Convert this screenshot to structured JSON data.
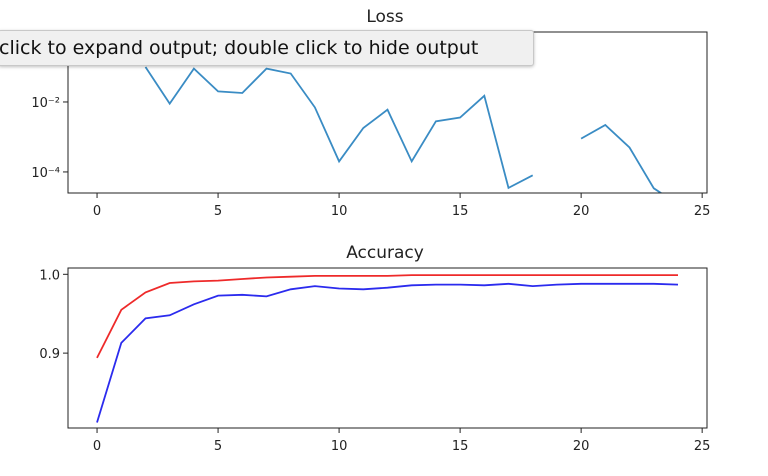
{
  "tooltip": {
    "text": "click to expand output; double click to hide output"
  },
  "chart_data": [
    {
      "type": "line",
      "title": "Loss",
      "xlabel": "",
      "ylabel": "",
      "yscale": "log",
      "xlim": [
        -1.2,
        25.2
      ],
      "ylim": [
        2.5e-05,
        1
      ],
      "xticks": [
        0,
        5,
        10,
        15,
        20,
        25
      ],
      "yticks": [
        0.01,
        0.0001
      ],
      "ytick_labels": [
        "10⁻²",
        "10⁻⁴"
      ],
      "grid": false,
      "colors": [
        "#3a8cc4"
      ],
      "series": [
        {
          "x": [
            0,
            1,
            2,
            3,
            4,
            5,
            6,
            7,
            8,
            9,
            10,
            11,
            12,
            13,
            14,
            15,
            16,
            17,
            18,
            19,
            20,
            21,
            22,
            23,
            24
          ],
          "values": [
            null,
            null,
            0.1,
            0.009,
            0.09,
            0.02,
            0.018,
            0.09,
            0.065,
            0.007,
            0.0002,
            0.0018,
            0.006,
            0.0002,
            0.0028,
            0.0036,
            0.015,
            3.5e-05,
            8e-05,
            null,
            0.0009,
            0.0022,
            0.0005,
            3.4e-05,
            1.2e-05
          ]
        }
      ]
    },
    {
      "type": "line",
      "title": "Accuracy",
      "xlabel": "",
      "ylabel": "",
      "xlim": [
        -1.2,
        25.2
      ],
      "ylim": [
        0.805,
        1.008
      ],
      "xticks": [
        0,
        5,
        10,
        15,
        20,
        25
      ],
      "yticks": [
        0.9,
        1.0
      ],
      "ytick_labels": [
        "0.9",
        "1.0"
      ],
      "grid": false,
      "colors": [
        "#ee2a2a",
        "#2b2bee"
      ],
      "series": [
        {
          "x": [
            0,
            1,
            2,
            3,
            4,
            5,
            6,
            7,
            8,
            9,
            10,
            11,
            12,
            13,
            14,
            15,
            16,
            17,
            18,
            19,
            20,
            21,
            22,
            23,
            24
          ],
          "values": [
            0.894,
            0.955,
            0.977,
            0.989,
            0.991,
            0.992,
            0.994,
            0.996,
            0.997,
            0.998,
            0.998,
            0.998,
            0.998,
            0.999,
            0.999,
            0.999,
            0.999,
            0.999,
            0.999,
            0.999,
            0.999,
            0.999,
            0.999,
            0.999,
            0.999
          ]
        },
        {
          "x": [
            0,
            1,
            2,
            3,
            4,
            5,
            6,
            7,
            8,
            9,
            10,
            11,
            12,
            13,
            14,
            15,
            16,
            17,
            18,
            19,
            20,
            21,
            22,
            23,
            24
          ],
          "values": [
            0.812,
            0.913,
            0.944,
            0.948,
            0.962,
            0.973,
            0.974,
            0.972,
            0.981,
            0.985,
            0.982,
            0.981,
            0.983,
            0.986,
            0.987,
            0.987,
            0.986,
            0.988,
            0.985,
            0.987,
            0.988,
            0.988,
            0.988,
            0.988,
            0.987
          ]
        }
      ]
    }
  ]
}
